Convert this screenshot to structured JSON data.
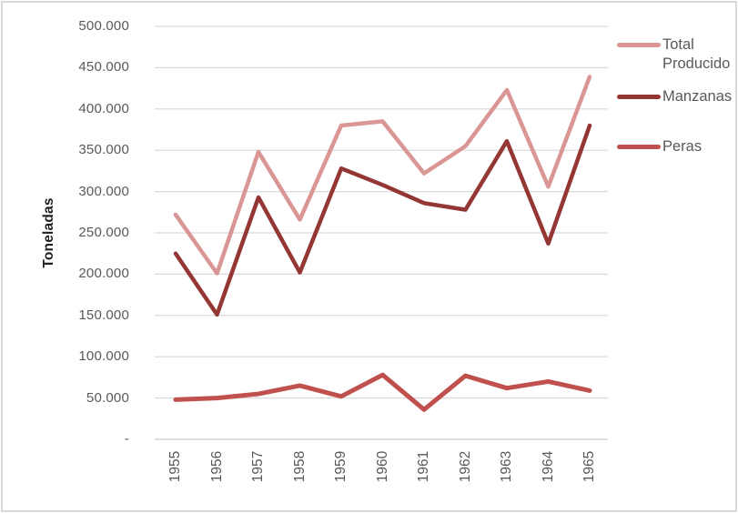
{
  "chart_data": {
    "type": "line",
    "x": [
      "1955",
      "1956",
      "1957",
      "1958",
      "1959",
      "1960",
      "1961",
      "1962",
      "1963",
      "1964",
      "1965"
    ],
    "series": [
      {
        "name": "Total Producido",
        "color": "#d99694",
        "stroke_width": 4.5,
        "values": [
          272000,
          201000,
          348000,
          266000,
          380000,
          385000,
          322000,
          355000,
          423000,
          306000,
          439000
        ]
      },
      {
        "name": "Manzanas",
        "color": "#943634",
        "stroke_width": 4.5,
        "values": [
          225000,
          151000,
          293000,
          202000,
          328000,
          308000,
          286000,
          278000,
          361000,
          237000,
          380000
        ]
      },
      {
        "name": "Peras",
        "color": "#c0504d",
        "stroke_width": 5,
        "values": [
          48000,
          50000,
          55000,
          65000,
          52000,
          78000,
          36000,
          77000,
          62000,
          70000,
          59000
        ]
      }
    ],
    "title": "",
    "xlabel": "",
    "ylabel": "Toneladas",
    "ylim": [
      0,
      500000
    ],
    "ytick_step": 50000,
    "ytick_labels_top_to_bottom": [
      "500.000",
      "450.000",
      "400.000",
      "350.000",
      "300.000",
      "250.000",
      "200.000",
      "150.000",
      "100.000",
      "50.000",
      "-"
    ],
    "grid": true,
    "legend_position": "right",
    "colors": {
      "gridline": "#d9d9d9",
      "axis_line": "#d3d3d3",
      "tick_text": "#595959",
      "frame_border": "#d9d9d9",
      "background": "#ffffff"
    }
  }
}
